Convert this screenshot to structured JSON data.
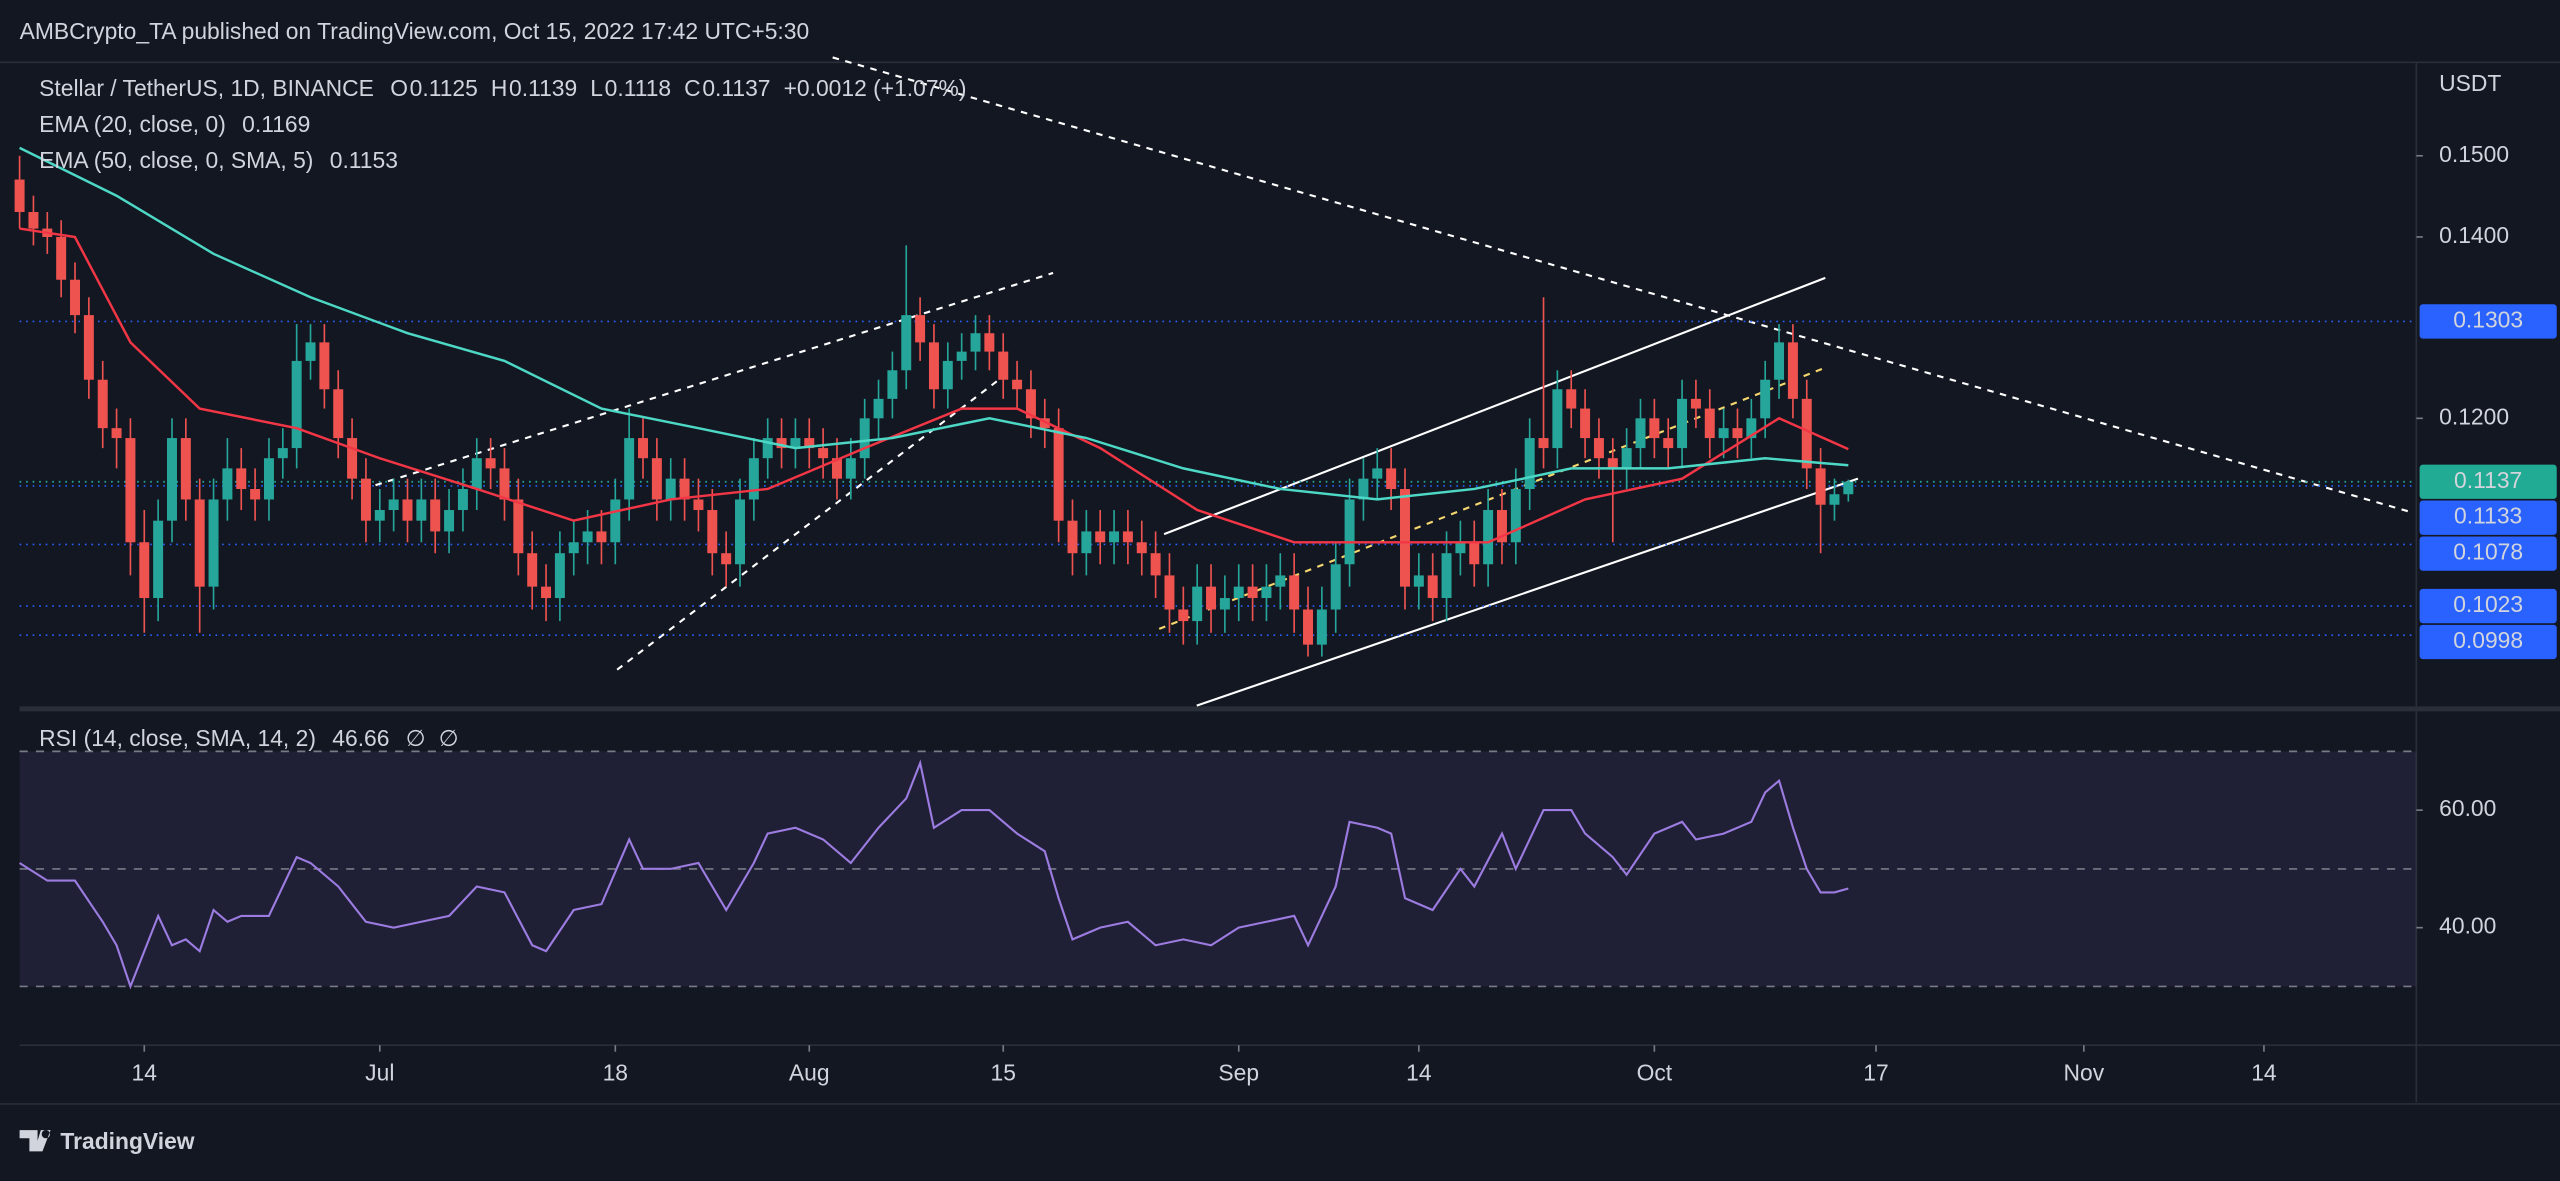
{
  "header": {
    "text": "AMBCrypto_TA published on TradingView.com, Oct 15, 2022 17:42 UTC+5:30"
  },
  "footer": {
    "logo_text": "TradingView"
  },
  "chart_data": [
    {
      "type": "candlestick",
      "title": "Stellar / TetherUS, 1D, BINANCE",
      "ohlc": [
        {
          "key": "O",
          "value": 0.1125
        },
        {
          "key": "H",
          "value": 0.1139
        },
        {
          "key": "L",
          "value": 0.1118
        },
        {
          "key": "C",
          "value": 0.1137
        }
      ],
      "change_label": "+0.0012 (+1.07%)",
      "axis_unit": "USDT",
      "up_color": "#26a69a",
      "down_color": "#ef5350",
      "log_scale": true,
      "ylim": [
        0.094,
        0.1624
      ],
      "yticks": [
        {
          "value": 0.15,
          "label": "0.1500"
        },
        {
          "value": 0.14,
          "label": "0.1400"
        },
        {
          "value": 0.12,
          "label": "0.1200"
        }
      ],
      "xlim": [
        "2022-06-05",
        "2022-11-25"
      ],
      "xticks": [
        {
          "value": "2022-06-14",
          "label": "14"
        },
        {
          "value": "2022-07-01",
          "label": "Jul"
        },
        {
          "value": "2022-07-18",
          "label": "18"
        },
        {
          "value": "2022-08-01",
          "label": "Aug"
        },
        {
          "value": "2022-08-15",
          "label": "15"
        },
        {
          "value": "2022-09-01",
          "label": "Sep"
        },
        {
          "value": "2022-09-14",
          "label": "14"
        },
        {
          "value": "2022-10-01",
          "label": "Oct"
        },
        {
          "value": "2022-10-17",
          "label": "17"
        },
        {
          "value": "2022-11-01",
          "label": "Nov"
        },
        {
          "value": "2022-11-14",
          "label": "14"
        }
      ],
      "x": [
        "2022-06-05",
        "2022-06-06",
        "2022-06-07",
        "2022-06-08",
        "2022-06-09",
        "2022-06-10",
        "2022-06-11",
        "2022-06-12",
        "2022-06-13",
        "2022-06-14",
        "2022-06-15",
        "2022-06-16",
        "2022-06-17",
        "2022-06-18",
        "2022-06-19",
        "2022-06-20",
        "2022-06-21",
        "2022-06-22",
        "2022-06-23",
        "2022-06-24",
        "2022-06-25",
        "2022-06-26",
        "2022-06-27",
        "2022-06-28",
        "2022-06-29",
        "2022-06-30",
        "2022-07-01",
        "2022-07-02",
        "2022-07-03",
        "2022-07-04",
        "2022-07-05",
        "2022-07-06",
        "2022-07-07",
        "2022-07-08",
        "2022-07-09",
        "2022-07-10",
        "2022-07-11",
        "2022-07-12",
        "2022-07-13",
        "2022-07-14",
        "2022-07-15",
        "2022-07-16",
        "2022-07-17",
        "2022-07-18",
        "2022-07-19",
        "2022-07-20",
        "2022-07-21",
        "2022-07-22",
        "2022-07-23",
        "2022-07-24",
        "2022-07-25",
        "2022-07-26",
        "2022-07-27",
        "2022-07-28",
        "2022-07-29",
        "2022-07-30",
        "2022-07-31",
        "2022-08-01",
        "2022-08-02",
        "2022-08-03",
        "2022-08-04",
        "2022-08-05",
        "2022-08-06",
        "2022-08-07",
        "2022-08-08",
        "2022-08-09",
        "2022-08-10",
        "2022-08-11",
        "2022-08-12",
        "2022-08-13",
        "2022-08-14",
        "2022-08-15",
        "2022-08-16",
        "2022-08-17",
        "2022-08-18",
        "2022-08-19",
        "2022-08-20",
        "2022-08-21",
        "2022-08-22",
        "2022-08-23",
        "2022-08-24",
        "2022-08-25",
        "2022-08-26",
        "2022-08-27",
        "2022-08-28",
        "2022-08-29",
        "2022-08-30",
        "2022-08-31",
        "2022-09-01",
        "2022-09-02",
        "2022-09-03",
        "2022-09-04",
        "2022-09-05",
        "2022-09-06",
        "2022-09-07",
        "2022-09-08",
        "2022-09-09",
        "2022-09-10",
        "2022-09-11",
        "2022-09-12",
        "2022-09-13",
        "2022-09-14",
        "2022-09-15",
        "2022-09-16",
        "2022-09-17",
        "2022-09-18",
        "2022-09-19",
        "2022-09-20",
        "2022-09-21",
        "2022-09-22",
        "2022-09-23",
        "2022-09-24",
        "2022-09-25",
        "2022-09-26",
        "2022-09-27",
        "2022-09-28",
        "2022-09-29",
        "2022-09-30",
        "2022-10-01",
        "2022-10-02",
        "2022-10-03",
        "2022-10-04",
        "2022-10-05",
        "2022-10-06",
        "2022-10-07",
        "2022-10-08",
        "2022-10-09",
        "2022-10-10",
        "2022-10-11",
        "2022-10-12",
        "2022-10-13",
        "2022-10-14",
        "2022-10-15"
      ],
      "open": [
        0.147,
        0.143,
        0.141,
        0.14,
        0.135,
        0.131,
        0.124,
        0.119,
        0.118,
        0.108,
        0.103,
        0.11,
        0.118,
        0.112,
        0.104,
        0.112,
        0.115,
        0.113,
        0.112,
        0.116,
        0.117,
        0.126,
        0.128,
        0.123,
        0.118,
        0.114,
        0.11,
        0.111,
        0.112,
        0.11,
        0.112,
        0.109,
        0.111,
        0.113,
        0.116,
        0.115,
        0.112,
        0.107,
        0.104,
        0.103,
        0.107,
        0.108,
        0.109,
        0.108,
        0.112,
        0.118,
        0.116,
        0.112,
        0.114,
        0.112,
        0.111,
        0.107,
        0.106,
        0.112,
        0.116,
        0.118,
        0.117,
        0.118,
        0.117,
        0.116,
        0.114,
        0.116,
        0.12,
        0.122,
        0.125,
        0.131,
        0.128,
        0.123,
        0.126,
        0.127,
        0.129,
        0.127,
        0.124,
        0.123,
        0.12,
        0.119,
        0.11,
        0.107,
        0.109,
        0.108,
        0.109,
        0.108,
        0.107,
        0.105,
        0.102,
        0.101,
        0.104,
        0.102,
        0.103,
        0.104,
        0.103,
        0.104,
        0.105,
        0.102,
        0.099,
        0.102,
        0.106,
        0.112,
        0.114,
        0.115,
        0.113,
        0.104,
        0.105,
        0.103,
        0.107,
        0.108,
        0.106,
        0.111,
        0.108,
        0.113,
        0.118,
        0.117,
        0.123,
        0.121,
        0.118,
        0.116,
        0.115,
        0.117,
        0.12,
        0.118,
        0.117,
        0.122,
        0.121,
        0.118,
        0.119,
        0.118,
        0.12,
        0.124,
        0.128,
        0.122,
        0.115,
        0.1115,
        0.1125
      ],
      "high": [
        0.15,
        0.145,
        0.143,
        0.142,
        0.137,
        0.133,
        0.126,
        0.121,
        0.12,
        0.111,
        0.112,
        0.12,
        0.12,
        0.114,
        0.114,
        0.118,
        0.117,
        0.115,
        0.118,
        0.119,
        0.13,
        0.13,
        0.13,
        0.125,
        0.12,
        0.116,
        0.113,
        0.114,
        0.114,
        0.114,
        0.114,
        0.113,
        0.115,
        0.118,
        0.118,
        0.117,
        0.114,
        0.109,
        0.106,
        0.109,
        0.11,
        0.111,
        0.111,
        0.114,
        0.121,
        0.12,
        0.118,
        0.116,
        0.116,
        0.114,
        0.113,
        0.109,
        0.114,
        0.118,
        0.12,
        0.12,
        0.12,
        0.12,
        0.119,
        0.118,
        0.118,
        0.122,
        0.124,
        0.127,
        0.139,
        0.133,
        0.13,
        0.128,
        0.129,
        0.131,
        0.131,
        0.129,
        0.126,
        0.125,
        0.122,
        0.121,
        0.112,
        0.111,
        0.111,
        0.111,
        0.111,
        0.11,
        0.109,
        0.107,
        0.104,
        0.106,
        0.106,
        0.105,
        0.106,
        0.106,
        0.106,
        0.107,
        0.107,
        0.104,
        0.104,
        0.108,
        0.114,
        0.116,
        0.117,
        0.117,
        0.115,
        0.107,
        0.107,
        0.109,
        0.11,
        0.11,
        0.113,
        0.113,
        0.115,
        0.12,
        0.133,
        0.125,
        0.125,
        0.123,
        0.12,
        0.118,
        0.119,
        0.122,
        0.122,
        0.12,
        0.124,
        0.124,
        0.123,
        0.121,
        0.121,
        0.122,
        0.126,
        0.13,
        0.13,
        0.124,
        0.117,
        0.114,
        0.1139
      ],
      "low": [
        0.141,
        0.139,
        0.138,
        0.133,
        0.129,
        0.122,
        0.117,
        0.115,
        0.105,
        0.1,
        0.101,
        0.108,
        0.11,
        0.1,
        0.102,
        0.11,
        0.111,
        0.11,
        0.11,
        0.114,
        0.115,
        0.124,
        0.121,
        0.116,
        0.112,
        0.108,
        0.108,
        0.109,
        0.108,
        0.108,
        0.107,
        0.107,
        0.109,
        0.111,
        0.113,
        0.11,
        0.105,
        0.102,
        0.101,
        0.101,
        0.105,
        0.106,
        0.106,
        0.106,
        0.11,
        0.114,
        0.11,
        0.11,
        0.11,
        0.109,
        0.105,
        0.104,
        0.104,
        0.11,
        0.114,
        0.115,
        0.115,
        0.115,
        0.114,
        0.112,
        0.112,
        0.114,
        0.118,
        0.12,
        0.123,
        0.126,
        0.121,
        0.121,
        0.124,
        0.125,
        0.125,
        0.122,
        0.121,
        0.118,
        0.117,
        0.108,
        0.105,
        0.105,
        0.106,
        0.106,
        0.106,
        0.105,
        0.103,
        0.1,
        0.099,
        0.099,
        0.1,
        0.1,
        0.101,
        0.101,
        0.101,
        0.102,
        0.1,
        0.098,
        0.098,
        0.1,
        0.104,
        0.11,
        0.112,
        0.111,
        0.102,
        0.102,
        0.101,
        0.101,
        0.105,
        0.104,
        0.104,
        0.106,
        0.106,
        0.111,
        0.115,
        0.115,
        0.119,
        0.116,
        0.114,
        0.108,
        0.113,
        0.115,
        0.116,
        0.115,
        0.115,
        0.119,
        0.116,
        0.116,
        0.116,
        0.116,
        0.118,
        0.122,
        0.12,
        0.113,
        0.107,
        0.11,
        0.1118
      ],
      "close": [
        0.143,
        0.141,
        0.14,
        0.135,
        0.131,
        0.124,
        0.119,
        0.118,
        0.108,
        0.103,
        0.11,
        0.118,
        0.112,
        0.104,
        0.112,
        0.115,
        0.113,
        0.112,
        0.116,
        0.117,
        0.126,
        0.128,
        0.123,
        0.118,
        0.114,
        0.11,
        0.111,
        0.112,
        0.11,
        0.112,
        0.109,
        0.111,
        0.113,
        0.116,
        0.115,
        0.112,
        0.107,
        0.104,
        0.103,
        0.107,
        0.108,
        0.109,
        0.108,
        0.112,
        0.118,
        0.116,
        0.112,
        0.114,
        0.112,
        0.111,
        0.107,
        0.106,
        0.112,
        0.116,
        0.118,
        0.117,
        0.118,
        0.117,
        0.116,
        0.114,
        0.116,
        0.12,
        0.122,
        0.125,
        0.131,
        0.128,
        0.123,
        0.126,
        0.127,
        0.129,
        0.127,
        0.124,
        0.123,
        0.12,
        0.119,
        0.11,
        0.107,
        0.109,
        0.108,
        0.109,
        0.108,
        0.107,
        0.105,
        0.102,
        0.101,
        0.104,
        0.102,
        0.103,
        0.104,
        0.103,
        0.104,
        0.105,
        0.102,
        0.099,
        0.102,
        0.106,
        0.112,
        0.114,
        0.115,
        0.113,
        0.104,
        0.105,
        0.103,
        0.107,
        0.108,
        0.106,
        0.111,
        0.108,
        0.113,
        0.118,
        0.117,
        0.123,
        0.121,
        0.118,
        0.116,
        0.115,
        0.117,
        0.12,
        0.118,
        0.117,
        0.122,
        0.121,
        0.118,
        0.119,
        0.118,
        0.12,
        0.124,
        0.128,
        0.122,
        0.115,
        0.1115,
        0.1125,
        0.1137
      ],
      "overlays": [
        {
          "name": "EMA (20, close, 0)",
          "value_label": 0.1169,
          "color": "#f23645",
          "x": [
            "2022-06-05",
            "2022-06-09",
            "2022-06-13",
            "2022-06-18",
            "2022-06-25",
            "2022-07-01",
            "2022-07-08",
            "2022-07-15",
            "2022-07-22",
            "2022-07-29",
            "2022-08-05",
            "2022-08-12",
            "2022-08-16",
            "2022-08-22",
            "2022-08-29",
            "2022-09-05",
            "2022-09-12",
            "2022-09-19",
            "2022-09-26",
            "2022-10-03",
            "2022-10-10",
            "2022-10-15"
          ],
          "values": [
            0.141,
            0.14,
            0.128,
            0.121,
            0.119,
            0.116,
            0.113,
            0.11,
            0.112,
            0.113,
            0.117,
            0.121,
            0.121,
            0.117,
            0.111,
            0.108,
            0.108,
            0.108,
            0.112,
            0.114,
            0.12,
            0.1169
          ]
        },
        {
          "name": "EMA (50, close, 0, SMA, 5)",
          "value_label": 0.1153,
          "color": "#4dd8c6",
          "x": [
            "2022-06-05",
            "2022-06-12",
            "2022-06-19",
            "2022-06-26",
            "2022-07-03",
            "2022-07-10",
            "2022-07-17",
            "2022-07-24",
            "2022-07-31",
            "2022-08-07",
            "2022-08-14",
            "2022-08-21",
            "2022-08-28",
            "2022-09-04",
            "2022-09-11",
            "2022-09-18",
            "2022-09-25",
            "2022-10-02",
            "2022-10-09",
            "2022-10-15"
          ],
          "values": [
            0.151,
            0.145,
            0.138,
            0.133,
            0.129,
            0.126,
            0.121,
            0.119,
            0.117,
            0.118,
            0.12,
            0.118,
            0.115,
            0.113,
            0.112,
            0.113,
            0.115,
            0.115,
            0.116,
            0.1153
          ]
        }
      ],
      "levels": {
        "values": [
          0.1303,
          0.1133,
          0.1078,
          0.1023,
          0.0998
        ],
        "color": "#2962ff"
      },
      "last_price": {
        "value": 0.1137,
        "color": "#22ab94"
      }
    },
    {
      "type": "line",
      "xlim": [
        "2022-06-05",
        "2022-11-25"
      ],
      "ylim": [
        20,
        76.4
      ],
      "yticks": [
        {
          "value": 60,
          "label": "60.00"
        },
        {
          "value": 40,
          "label": "40.00"
        }
      ],
      "hlines": [
        70,
        50,
        30
      ],
      "band_color": "#7e57c2",
      "extra_labels": [
        "∅",
        "∅"
      ],
      "series": [
        {
          "name": "RSI (14, close, SMA, 14, 2)",
          "color": "#9c7ce0",
          "value_label": 46.66,
          "x": [
            "2022-06-05",
            "2022-06-07",
            "2022-06-09",
            "2022-06-11",
            "2022-06-12",
            "2022-06-13",
            "2022-06-14",
            "2022-06-15",
            "2022-06-16",
            "2022-06-17",
            "2022-06-18",
            "2022-06-19",
            "2022-06-20",
            "2022-06-21",
            "2022-06-23",
            "2022-06-25",
            "2022-06-26",
            "2022-06-28",
            "2022-06-30",
            "2022-07-02",
            "2022-07-04",
            "2022-07-06",
            "2022-07-08",
            "2022-07-10",
            "2022-07-12",
            "2022-07-13",
            "2022-07-15",
            "2022-07-17",
            "2022-07-19",
            "2022-07-20",
            "2022-07-22",
            "2022-07-24",
            "2022-07-26",
            "2022-07-28",
            "2022-07-29",
            "2022-07-31",
            "2022-08-02",
            "2022-08-04",
            "2022-08-06",
            "2022-08-08",
            "2022-08-09",
            "2022-08-10",
            "2022-08-12",
            "2022-08-14",
            "2022-08-16",
            "2022-08-18",
            "2022-08-19",
            "2022-08-20",
            "2022-08-22",
            "2022-08-24",
            "2022-08-26",
            "2022-08-28",
            "2022-08-30",
            "2022-09-01",
            "2022-09-03",
            "2022-09-05",
            "2022-09-06",
            "2022-09-08",
            "2022-09-09",
            "2022-09-11",
            "2022-09-12",
            "2022-09-13",
            "2022-09-15",
            "2022-09-17",
            "2022-09-18",
            "2022-09-20",
            "2022-09-21",
            "2022-09-23",
            "2022-09-25",
            "2022-09-26",
            "2022-09-28",
            "2022-09-29",
            "2022-10-01",
            "2022-10-03",
            "2022-10-04",
            "2022-10-06",
            "2022-10-08",
            "2022-10-09",
            "2022-10-10",
            "2022-10-11",
            "2022-10-12",
            "2022-10-13",
            "2022-10-14",
            "2022-10-15"
          ],
          "values": [
            51,
            48,
            48,
            41,
            37,
            30,
            36,
            42,
            37,
            38,
            36,
            43,
            41,
            42,
            42,
            52,
            51,
            47,
            41,
            40,
            41,
            42,
            47,
            46,
            37,
            36,
            43,
            44,
            55,
            50,
            50,
            51,
            43,
            51,
            56,
            57,
            55,
            51,
            57,
            62,
            68,
            57,
            60,
            60,
            56,
            53,
            45,
            38,
            40,
            41,
            37,
            38,
            37,
            40,
            41,
            42,
            37,
            47,
            58,
            57,
            56,
            45,
            43,
            50,
            47,
            56,
            50,
            60,
            60,
            56,
            52,
            49,
            56,
            58,
            55,
            56,
            58,
            63,
            65,
            57,
            50,
            46,
            46,
            46.66
          ]
        }
      ]
    }
  ]
}
